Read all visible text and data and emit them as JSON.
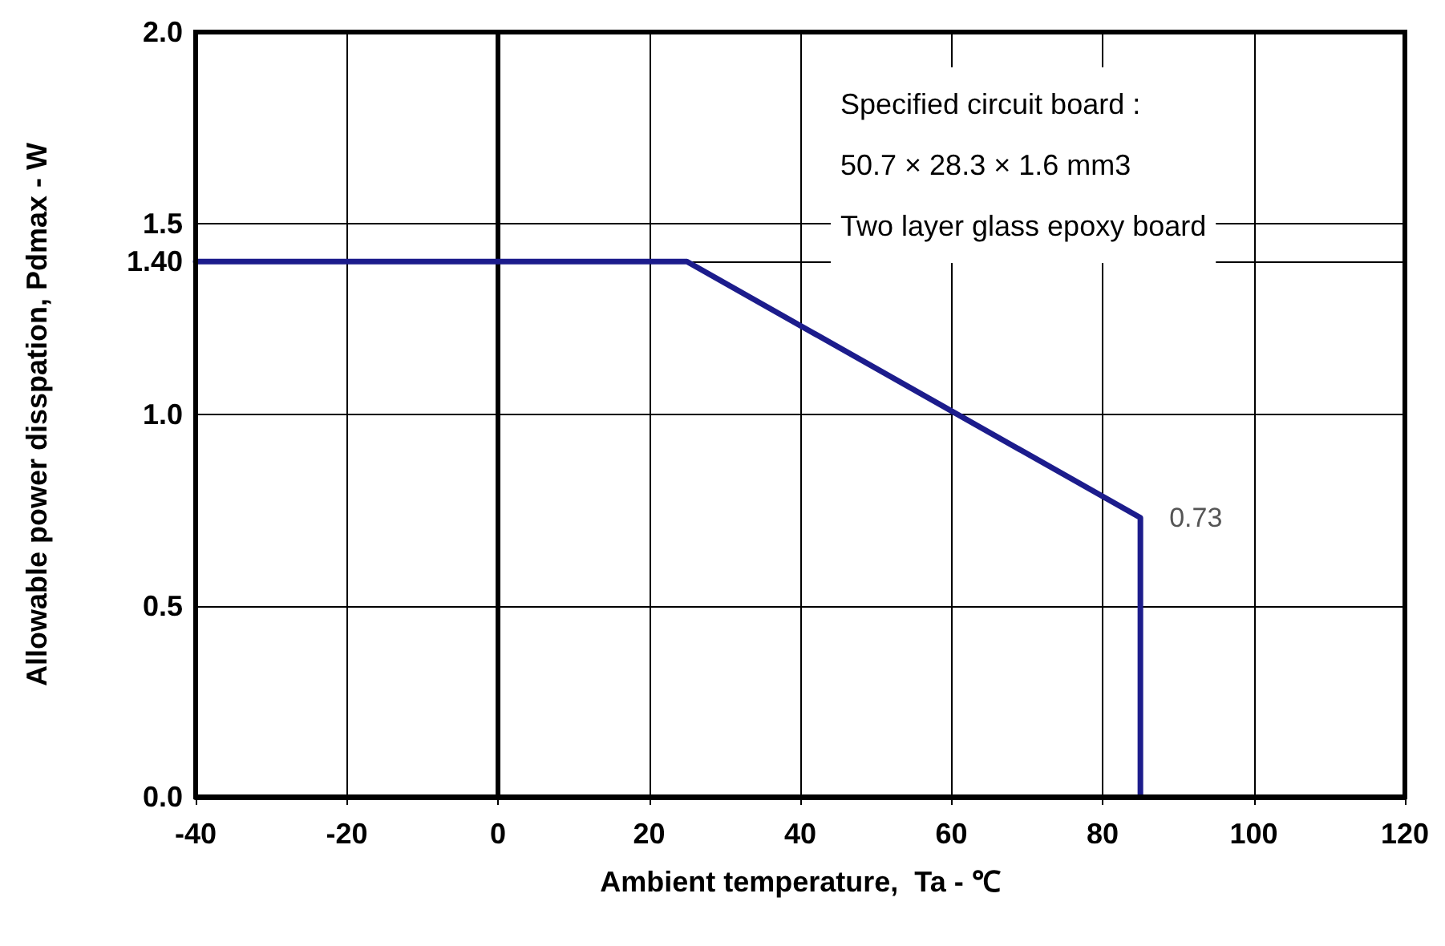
{
  "chart_data": {
    "type": "line",
    "xlabel": "Ambient temperature,  Ta - ℃",
    "ylabel": "Allowable power disspation, Pdmax - W",
    "x": [
      -40,
      25,
      85,
      85
    ],
    "series": [
      {
        "color": "#1c1c8c",
        "values": [
          1.4,
          1.4,
          0.73,
          0
        ]
      }
    ],
    "xlim": [
      -40,
      120
    ],
    "xticks": [
      -40,
      -20,
      0,
      20,
      40,
      60,
      80,
      100,
      120
    ],
    "ylim": [
      0,
      2.0
    ],
    "yticks": [
      {
        "value": 0,
        "label": "0.0"
      },
      0.5,
      {
        "value": 1,
        "label": "1.0"
      },
      {
        "value": 1.4,
        "label": "1.40"
      },
      1.5,
      {
        "value": 2,
        "label": "2.0"
      }
    ],
    "grid": true,
    "marker": "none",
    "line_style": "solid",
    "annotations": [
      "Specified circuit board :",
      "50.7 × 28.3 × 1.6 mm3",
      "Two layer glass epoxy board",
      {
        "text": "0.73",
        "x": 85,
        "y": 0.73
      }
    ]
  }
}
